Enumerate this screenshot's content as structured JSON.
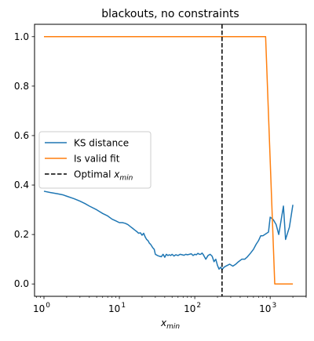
{
  "chart_data": {
    "type": "line",
    "title": "blackouts, no constraints",
    "xlabel": "x_min",
    "xlabel_base": "x",
    "xlabel_sub": "min",
    "ylabel": "",
    "xscale": "log",
    "xlim": [
      0.75,
      3000
    ],
    "ylim": [
      -0.05,
      1.05
    ],
    "x_ticks": [
      {
        "value": 1,
        "base": "10",
        "exp": "0"
      },
      {
        "value": 10,
        "base": "10",
        "exp": "1"
      },
      {
        "value": 100,
        "base": "10",
        "exp": "2"
      },
      {
        "value": 1000,
        "base": "10",
        "exp": "3"
      }
    ],
    "y_ticks": [
      0.0,
      0.2,
      0.4,
      0.6,
      0.8,
      1.0
    ],
    "y_tick_labels": [
      "0.0",
      "0.2",
      "0.4",
      "0.6",
      "0.8",
      "1.0"
    ],
    "grid": false,
    "legend_position": "center-left",
    "series": [
      {
        "name": "KS distance",
        "color": "#1f77b4",
        "style": "solid",
        "x": [
          1,
          1.2,
          1.5,
          1.8,
          2,
          2.5,
          3,
          3.5,
          4,
          5,
          6,
          7,
          8,
          9,
          10,
          11,
          12,
          13,
          14,
          15,
          16,
          17,
          18,
          19,
          20,
          21,
          22,
          23,
          24,
          25,
          26,
          27,
          28,
          29,
          30,
          32,
          34,
          36,
          38,
          40,
          42,
          44,
          46,
          48,
          50,
          53,
          56,
          60,
          64,
          68,
          72,
          76,
          80,
          85,
          90,
          95,
          100,
          105,
          110,
          115,
          120,
          125,
          130,
          140,
          150,
          160,
          170,
          180,
          190,
          200,
          210,
          220,
          230,
          240,
          250,
          270,
          290,
          320,
          350,
          380,
          420,
          460,
          500,
          550,
          600,
          650,
          700,
          750,
          800,
          850,
          900,
          950,
          1000,
          1100,
          1200,
          1300,
          1400,
          1500,
          1600,
          1800,
          2000
        ],
        "y": [
          0.375,
          0.37,
          0.365,
          0.36,
          0.355,
          0.345,
          0.335,
          0.325,
          0.315,
          0.3,
          0.285,
          0.275,
          0.262,
          0.255,
          0.248,
          0.248,
          0.245,
          0.24,
          0.232,
          0.225,
          0.218,
          0.212,
          0.205,
          0.207,
          0.197,
          0.205,
          0.19,
          0.18,
          0.175,
          0.165,
          0.16,
          0.152,
          0.145,
          0.14,
          0.12,
          0.115,
          0.112,
          0.11,
          0.12,
          0.108,
          0.12,
          0.115,
          0.118,
          0.115,
          0.12,
          0.113,
          0.118,
          0.115,
          0.12,
          0.118,
          0.116,
          0.12,
          0.118,
          0.12,
          0.122,
          0.115,
          0.12,
          0.118,
          0.124,
          0.12,
          0.12,
          0.125,
          0.118,
          0.1,
          0.115,
          0.12,
          0.112,
          0.09,
          0.1,
          0.075,
          0.06,
          0.068,
          0.058,
          0.065,
          0.07,
          0.075,
          0.08,
          0.072,
          0.08,
          0.09,
          0.1,
          0.1,
          0.11,
          0.125,
          0.14,
          0.16,
          0.175,
          0.195,
          0.195,
          0.2,
          0.205,
          0.21,
          0.27,
          0.26,
          0.24,
          0.2,
          0.26,
          0.315,
          0.18,
          0.23,
          0.32
        ]
      },
      {
        "name": "Is valid fit",
        "color": "#ff7f0e",
        "style": "solid",
        "x": [
          1,
          870,
          1150,
          2000
        ],
        "y": [
          1.0,
          1.0,
          0.0,
          0.0
        ]
      }
    ],
    "vline": {
      "name": "Optimal x_min",
      "legend_base": "Optimal ",
      "legend_x": "x",
      "legend_sub": "min",
      "color": "#000000",
      "style": "dashed",
      "x": 230
    }
  }
}
